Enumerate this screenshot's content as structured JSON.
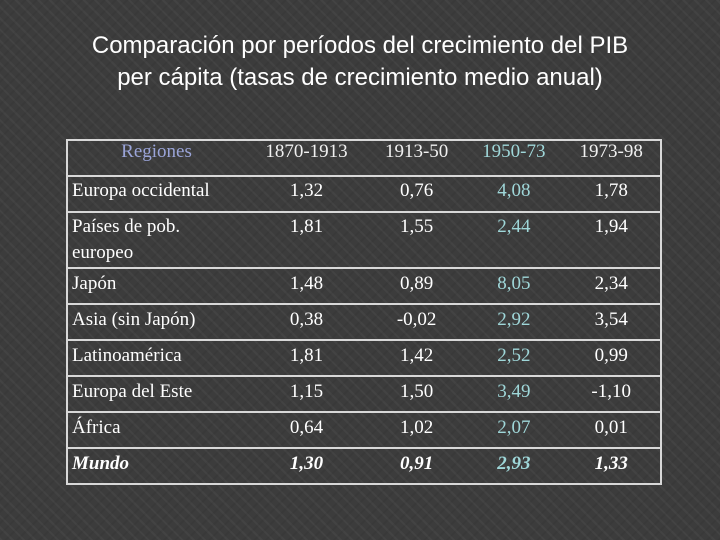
{
  "title": {
    "line1": "Comparación por períodos del crecimiento del PIB",
    "line2": "per cápita  (tasas de crecimiento medio anual)"
  },
  "colors": {
    "background": "#3c3c3c",
    "text": "#ffffff",
    "header_region": "#9aa4d8",
    "highlight_teal": "#9fd7d9",
    "border": "#d8d8d8"
  },
  "table": {
    "headers": [
      "Regiones",
      "1870-1913",
      "1913-50",
      "1950-73",
      "1973-98"
    ],
    "rows": [
      {
        "region": "Europa occidental",
        "values": [
          "1,32",
          "0,76",
          "4,08",
          "1,78"
        ]
      },
      {
        "region": "Países de pob. europeo",
        "values": [
          "1,81",
          "1,55",
          "2,44",
          "1,94"
        ]
      },
      {
        "region": "Japón",
        "values": [
          "1,48",
          "0,89",
          "8,05",
          "2,34"
        ]
      },
      {
        "region": "Asia (sin Japón)",
        "values": [
          "0,38",
          "-0,02",
          "2,92",
          "3,54"
        ]
      },
      {
        "region": "Latinoamérica",
        "values": [
          "1,81",
          "1,42",
          "2,52",
          "0,99"
        ]
      },
      {
        "region": "Europa del Este",
        "values": [
          "1,15",
          "1,50",
          "3,49",
          "-1,10"
        ]
      },
      {
        "region": "África",
        "values": [
          "0,64",
          "1,02",
          "2,07",
          "0,01"
        ]
      },
      {
        "region": "Mundo",
        "values": [
          "1,30",
          "0,91",
          "2,93",
          "1,33"
        ]
      }
    ]
  }
}
